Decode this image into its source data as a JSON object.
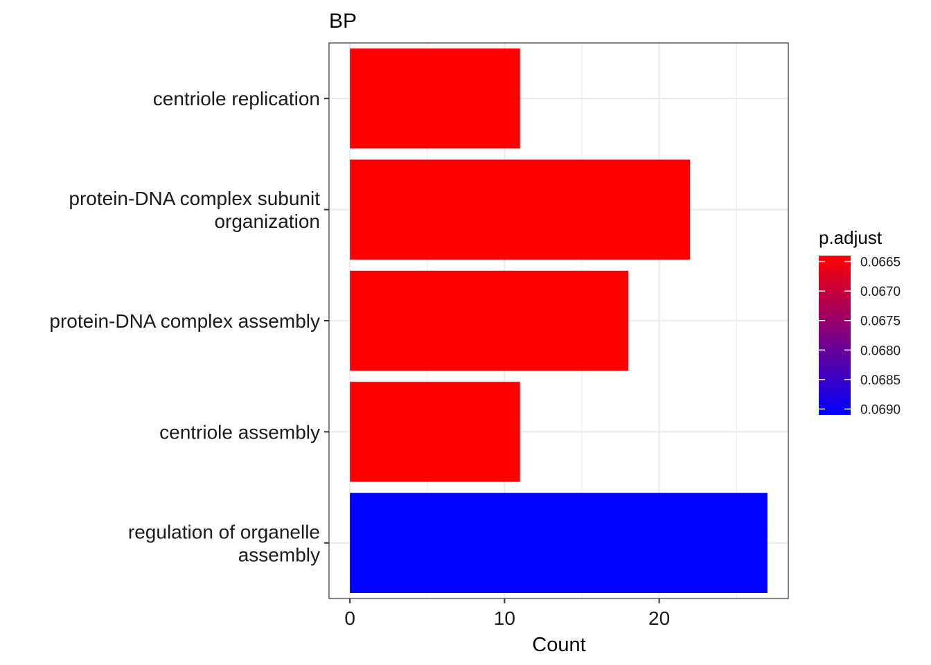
{
  "chart_data": {
    "type": "bar",
    "orientation": "horizontal",
    "title": "BP",
    "xlabel": "Count",
    "ylabel": "",
    "xlim": [
      -1.35,
      28.35
    ],
    "xticks": [
      0,
      10,
      20
    ],
    "categories": [
      [
        "centriole replication"
      ],
      [
        "protein-DNA complex subunit",
        "organization"
      ],
      [
        "protein-DNA complex assembly"
      ],
      [
        "centriole assembly"
      ],
      [
        "regulation of organelle",
        "assembly"
      ]
    ],
    "values": [
      11,
      22,
      18,
      11,
      27
    ],
    "p_adjust": [
      0.0664,
      0.0664,
      0.0664,
      0.0664,
      0.0691
    ],
    "grid": true,
    "legend": {
      "title": "p.adjust",
      "position": "right",
      "ticks": [
        "0.0665",
        "0.0670",
        "0.0675",
        "0.0680",
        "0.0685",
        "0.0690"
      ],
      "tick_values": [
        0.0665,
        0.067,
        0.0675,
        0.068,
        0.0685,
        0.069
      ],
      "range": [
        0.0664,
        0.0691
      ],
      "low_color": "#ff0000",
      "high_color": "#0000ff"
    }
  }
}
